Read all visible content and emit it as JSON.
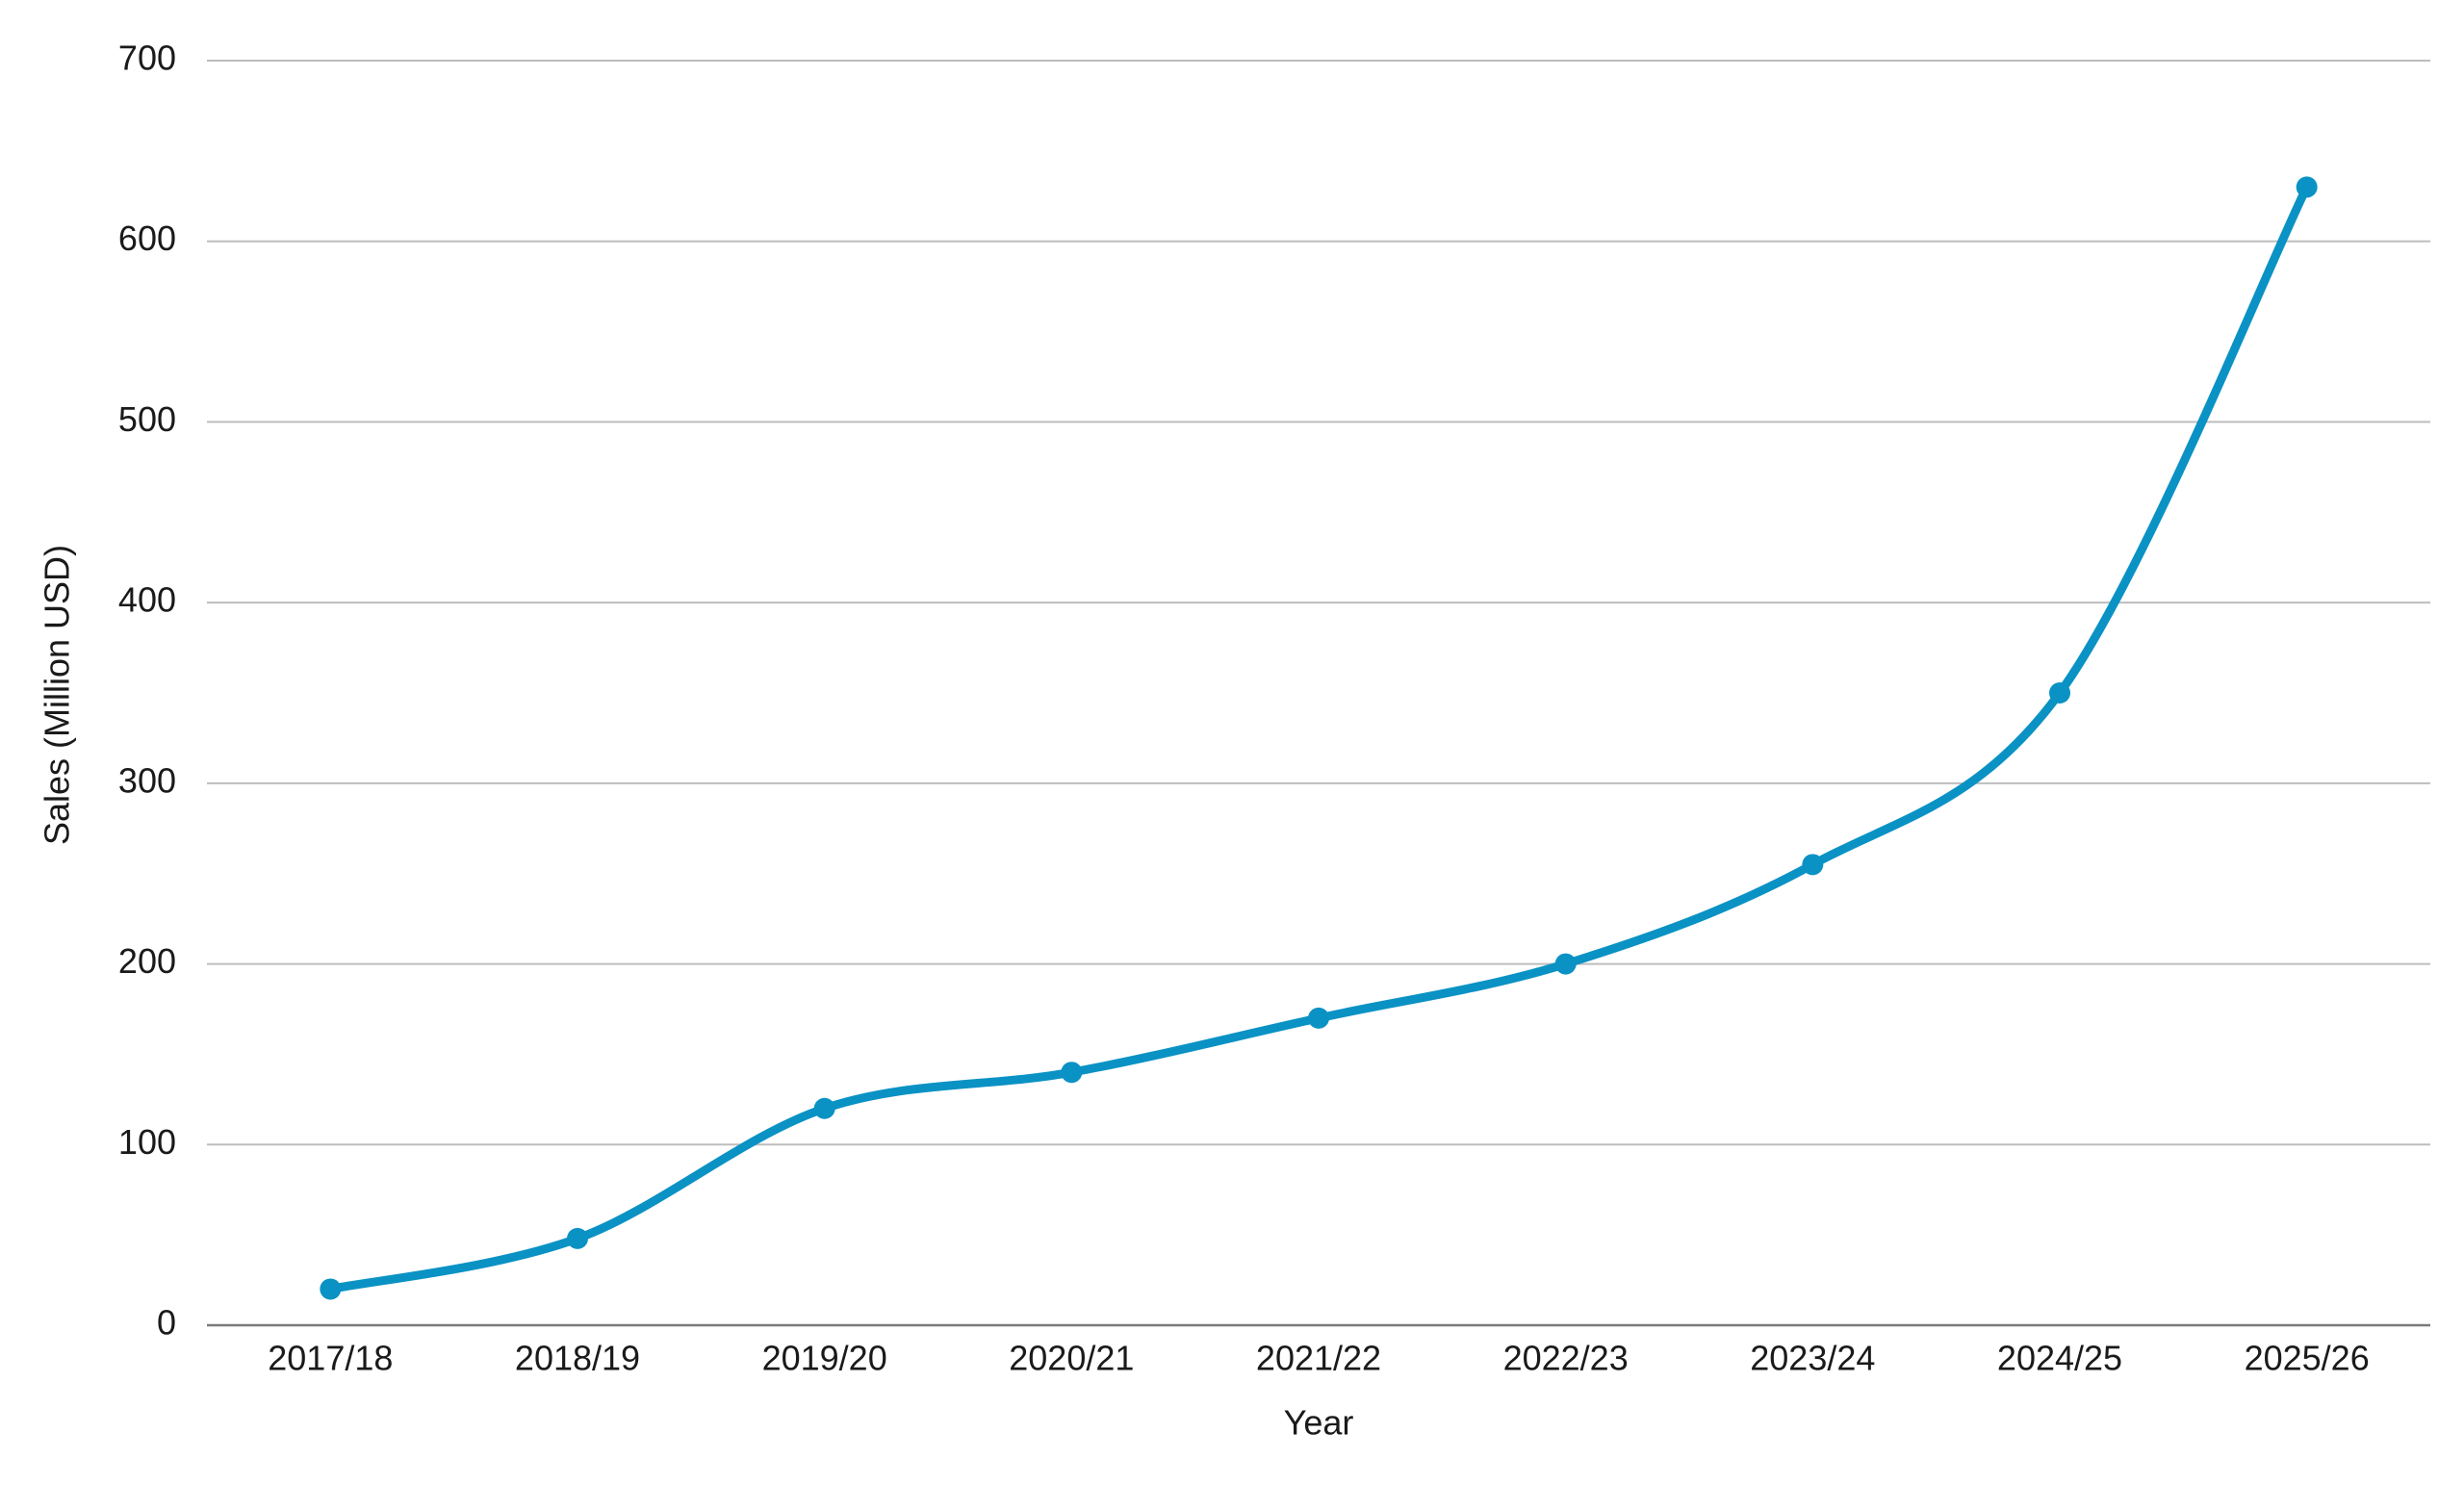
{
  "chart_data": {
    "type": "line",
    "title": "",
    "xlabel": "Year",
    "ylabel": "Sales (Million USD)",
    "categories": [
      "2017/18",
      "2018/19",
      "2019/20",
      "2020/21",
      "2021/22",
      "2022/23",
      "2023/24",
      "2024/25",
      "2025/26"
    ],
    "series": [
      {
        "values": [
          20,
          48,
          120,
          140,
          170,
          200,
          255,
          350,
          630
        ],
        "color": "#0a92c4"
      }
    ],
    "ylim": [
      0,
      700
    ],
    "yticks": [
      0,
      100,
      200,
      300,
      400,
      500,
      600,
      700
    ],
    "grid": true,
    "legend": "none",
    "smooth": true,
    "markers": true
  }
}
